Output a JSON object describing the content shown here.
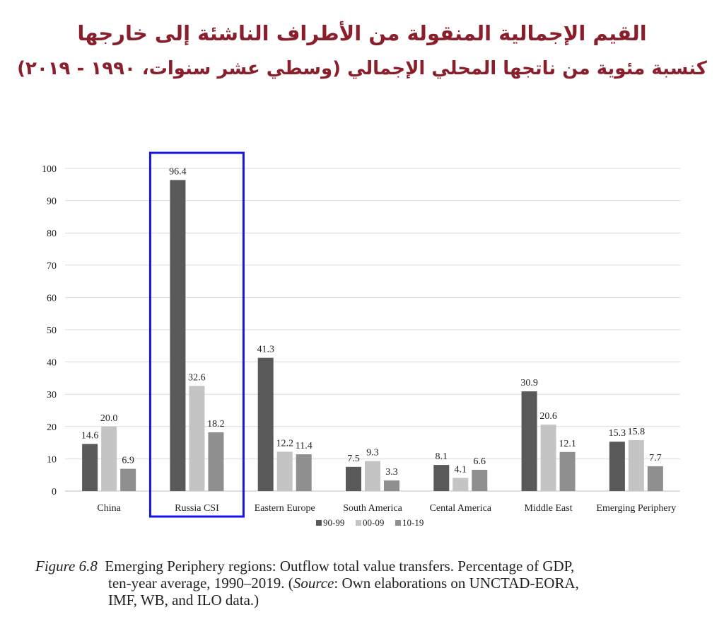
{
  "header": {
    "title_line_1": "القيم الإجمالية المنقولة من الأطراف الناشئة إلى خارجها",
    "title_line_2": "كنسبة مئوية من ناتجها المحلي الإجمالي (وسطي عشر سنوات، ١٩٩٠ - ٢٠١٩)"
  },
  "colors": {
    "title": "#8a1f2b",
    "highlight_box": "#1515e0",
    "series_90_99": "#595959",
    "series_00_09": "#c4c4c4",
    "series_10_19": "#8f8f8f",
    "grid": "#d9d9d9"
  },
  "chart_data": {
    "type": "bar",
    "categories": [
      "China",
      "Russia CSI",
      "Eastern Europe",
      "South America",
      "Cental America",
      "Middle East",
      "Emerging Periphery"
    ],
    "series": [
      {
        "name": "90-99",
        "values": [
          14.6,
          96.4,
          41.3,
          7.5,
          8.1,
          30.9,
          15.3
        ]
      },
      {
        "name": "00-09",
        "values": [
          20.0,
          32.6,
          12.2,
          9.3,
          4.1,
          20.6,
          15.8
        ]
      },
      {
        "name": "10-19",
        "values": [
          6.9,
          18.2,
          11.4,
          3.3,
          6.6,
          12.1,
          7.7
        ]
      }
    ],
    "data_labels": [
      [
        "14.6",
        "96.4",
        "41.3",
        "7.5",
        "8.1",
        "30.9",
        "15.3"
      ],
      [
        "20.0",
        "32.6",
        "12.2",
        "9.3",
        "4.1",
        "20.6",
        "15.8"
      ],
      [
        "6.9",
        "18.2",
        "11.4",
        "3.3",
        "6.6",
        "12.1",
        "7.7"
      ]
    ],
    "ylim": [
      0,
      100
    ],
    "yticks": [
      0,
      10,
      20,
      30,
      40,
      50,
      60,
      70,
      80,
      90,
      100
    ],
    "grid": true,
    "legend_position": "bottom-center",
    "highlighted_category": "Russia CSI"
  },
  "caption": {
    "figure_label": "Figure 6.8",
    "line_1_text": "Emerging Periphery regions: Outflow total value transfers. Percentage of GDP,",
    "line_2_text_before": "ten-year average, 1990–2019. (",
    "source_word": "Source",
    "line_2_text_after": ": Own elaborations on UNCTAD-EORA,",
    "line_3_text": "IMF, WB, and ILO data.)"
  }
}
